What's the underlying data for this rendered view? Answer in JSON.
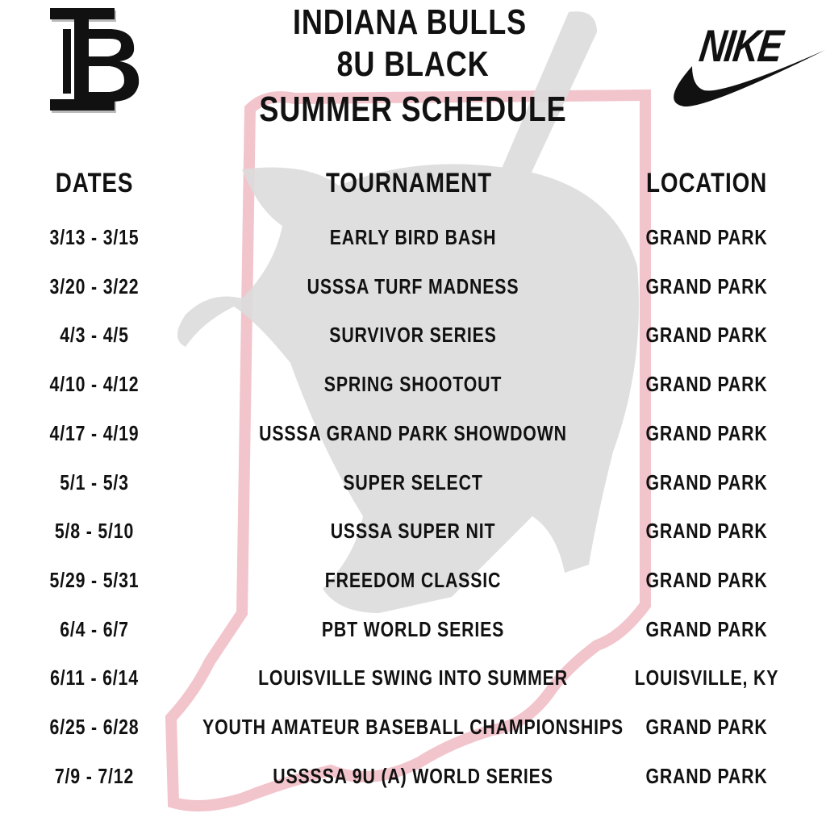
{
  "header": {
    "title_line1": "INDIANA BULLS",
    "title_line2": "8U BLACK",
    "title_line3": "SUMMER SCHEDULE",
    "left_logo": "IB",
    "right_logo": "NIKE"
  },
  "colors": {
    "text": "#111111",
    "state_outline": "#f2c4cc",
    "watermark": "#d9d9d9"
  },
  "columns": {
    "dates": "DATES",
    "tournament": "TOURNAMENT",
    "location": "LOCATION"
  },
  "rows": [
    {
      "dates": "3/13 - 3/15",
      "tournament": "EARLY BIRD BASH",
      "location": "GRAND PARK"
    },
    {
      "dates": "3/20 - 3/22",
      "tournament": "USSSA TURF MADNESS",
      "location": "GRAND PARK"
    },
    {
      "dates": "4/3 - 4/5",
      "tournament": "SURVIVOR SERIES",
      "location": "GRAND PARK"
    },
    {
      "dates": "4/10 - 4/12",
      "tournament": "SPRING SHOOTOUT",
      "location": "GRAND PARK"
    },
    {
      "dates": "4/17 - 4/19",
      "tournament": "USSSA GRAND PARK SHOWDOWN",
      "location": "GRAND PARK"
    },
    {
      "dates": "5/1 - 5/3",
      "tournament": "SUPER SELECT",
      "location": "GRAND PARK"
    },
    {
      "dates": "5/8 - 5/10",
      "tournament": "USSSA SUPER NIT",
      "location": "GRAND PARK"
    },
    {
      "dates": "5/29 - 5/31",
      "tournament": "FREEDOM CLASSIC",
      "location": "GRAND PARK"
    },
    {
      "dates": "6/4 - 6/7",
      "tournament": "PBT WORLD SERIES",
      "location": "GRAND PARK"
    },
    {
      "dates": "6/11 - 6/14",
      "tournament": "LOUISVILLE SWING INTO SUMMER",
      "location": "LOUISVILLE, KY"
    },
    {
      "dates": "6/25 - 6/28",
      "tournament": "YOUTH AMATEUR BASEBALL CHAMPIONSHIPS",
      "location": "GRAND PARK"
    },
    {
      "dates": "7/9 - 7/12",
      "tournament": "USSSSA 9U (A) WORLD SERIES",
      "location": "GRAND PARK"
    }
  ]
}
